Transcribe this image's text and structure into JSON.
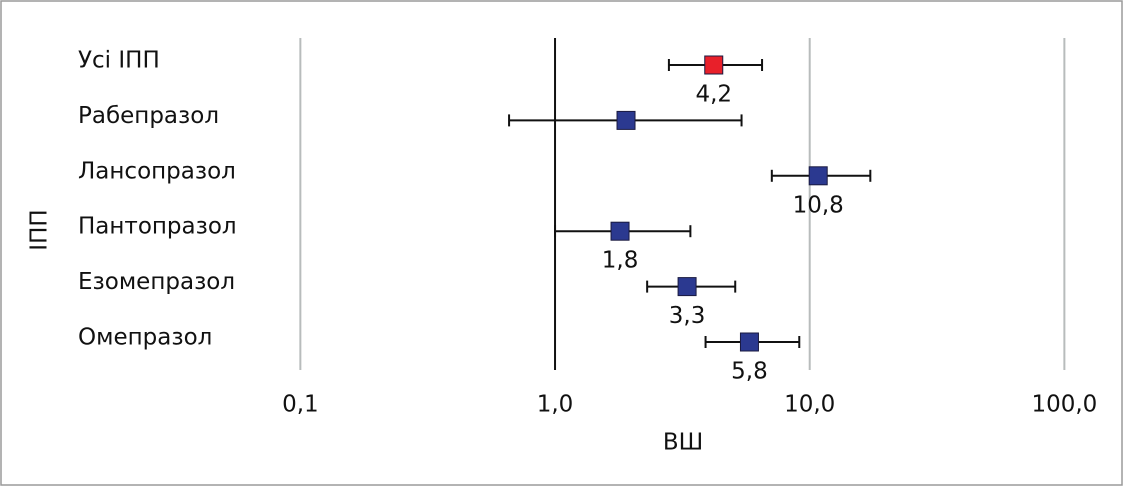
{
  "chart_data": {
    "type": "forest",
    "categories": [
      "Усі ІПП",
      "Рабепразол",
      "Лансопразол",
      "Пантопразол",
      "Езомепразол",
      "Омепразол"
    ],
    "values": [
      4.2,
      1.9,
      10.8,
      1.8,
      3.3,
      5.8
    ],
    "value_labels": [
      "4,2",
      null,
      "10,8",
      "1,8",
      "3,3",
      "5,8"
    ],
    "ci_low": [
      2.8,
      0.66,
      7.1,
      1.0,
      2.3,
      3.9
    ],
    "ci_high": [
      6.5,
      5.4,
      17.3,
      3.4,
      5.1,
      9.1
    ],
    "colors": [
      "#e8202a",
      "#2b3990",
      "#2b3990",
      "#2b3990",
      "#2b3990",
      "#2b3990"
    ],
    "xscale": "log",
    "xlim": [
      0.076,
      138
    ],
    "xticks": [
      {
        "value": 0.1,
        "label": "0,1"
      },
      {
        "value": 1,
        "label": "1,0"
      },
      {
        "value": 10,
        "label": "10,0"
      },
      {
        "value": 100,
        "label": "100,0"
      }
    ],
    "reference_line": 1,
    "grid": true,
    "xlabel": "ВШ",
    "ylabel": "ІПП"
  }
}
